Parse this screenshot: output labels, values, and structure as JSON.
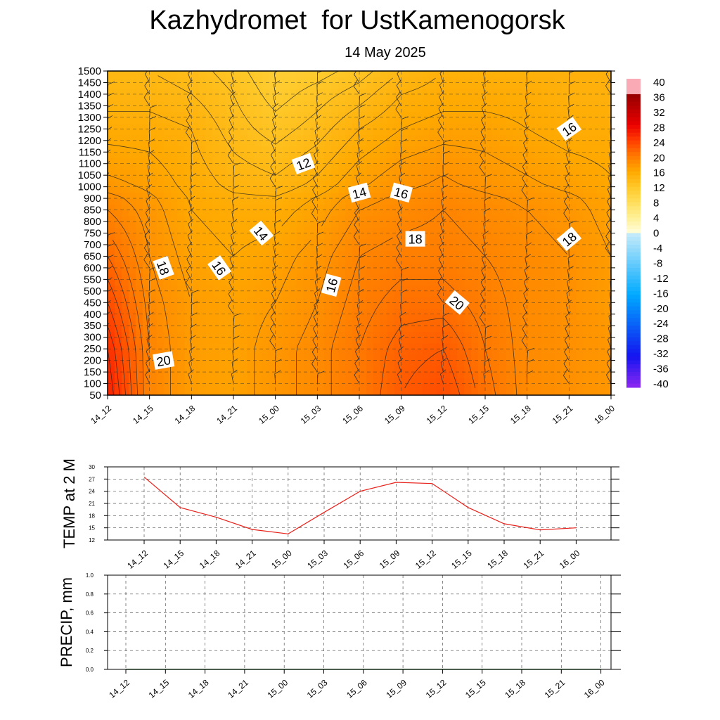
{
  "title": "Kazhydromet  for UstKamenogorsk",
  "subtitle": "14 May 2025",
  "time_labels": [
    "14_12",
    "14_15",
    "14_18",
    "14_21",
    "15_00",
    "15_03",
    "15_06",
    "15_09",
    "15_12",
    "15_15",
    "15_18",
    "15_21",
    "16_00"
  ],
  "colors": {
    "temp_line": "#e8211a",
    "grid": "#7f7f7f",
    "precip_line": "#2e7d32"
  },
  "chart_data": [
    {
      "type": "heatmap",
      "description_type": "time-height cross-section (temperature contours + wind barbs)",
      "x": [
        "14_12",
        "14_15",
        "14_18",
        "14_21",
        "15_00",
        "15_03",
        "15_06",
        "15_09",
        "15_12",
        "15_15",
        "15_18",
        "15_21",
        "16_00"
      ],
      "y_levels": [
        50,
        100,
        150,
        200,
        250,
        300,
        350,
        400,
        450,
        500,
        550,
        600,
        650,
        700,
        750,
        800,
        850,
        900,
        1000,
        1050,
        1100,
        1150,
        1200,
        1250,
        1300,
        1350,
        1400,
        1450,
        1500
      ],
      "temperature_grid": [
        [
          26,
          19,
          17,
          16.5,
          17.5,
          18.5,
          20,
          22,
          23,
          20.5,
          18.5,
          18,
          17.5
        ],
        [
          25,
          19,
          17,
          16.5,
          17.5,
          18.5,
          20,
          21.5,
          22,
          20,
          18.5,
          18,
          17.5
        ],
        [
          23,
          18.5,
          17,
          16.5,
          17,
          18,
          19.5,
          20.5,
          20.5,
          19.5,
          18.5,
          18,
          17
        ],
        [
          21,
          18,
          16.5,
          16,
          16.5,
          17.5,
          19,
          19.5,
          19.5,
          19,
          18.5,
          18,
          17
        ],
        [
          19,
          17.5,
          16,
          15.5,
          15.5,
          16.5,
          18,
          18.5,
          19,
          18.5,
          18,
          17.5,
          16.5
        ],
        [
          17,
          16.5,
          15.5,
          14.5,
          14,
          15,
          16.5,
          17.5,
          18,
          17.5,
          17,
          16.5,
          16
        ],
        [
          15.5,
          15.5,
          15,
          13.5,
          12.5,
          13.5,
          15,
          16,
          16.5,
          16.5,
          16,
          15.5,
          15.5
        ],
        [
          14.5,
          14.5,
          14,
          13,
          11.5,
          12.5,
          13.5,
          15,
          15.5,
          15.5,
          15.5,
          15,
          15
        ],
        [
          14,
          14,
          13.5,
          12.5,
          11,
          11.5,
          12.5,
          14,
          15,
          15,
          15,
          15,
          15
        ]
      ],
      "contour_labels": [
        {
          "text": "20",
          "time": "14_16",
          "level": 200
        },
        {
          "text": "18",
          "time": "14_16",
          "level": 600
        },
        {
          "text": "16",
          "time": "14_20",
          "level": 600
        },
        {
          "text": "14",
          "time": "14_23",
          "level": 750
        },
        {
          "text": "12",
          "time": "15_02",
          "level": 1100
        },
        {
          "text": "14",
          "time": "15_06",
          "level": 950
        },
        {
          "text": "16",
          "time": "15_09",
          "level": 950
        },
        {
          "text": "18",
          "time": "15_10",
          "level": 725
        },
        {
          "text": "16",
          "time": "15_04",
          "level": 525
        },
        {
          "text": "20",
          "time": "15_13",
          "level": 450
        },
        {
          "text": "16",
          "time": "15_21",
          "level": 1250
        },
        {
          "text": "18",
          "time": "15_21",
          "level": 725
        }
      ],
      "colorbar_ticks": [
        "40",
        "36",
        "32",
        "28",
        "24",
        "20",
        "16",
        "12",
        "8",
        "4",
        "0",
        "-4",
        "-8",
        "-12",
        "-16",
        "-20",
        "-24",
        "-28",
        "-32",
        "-36",
        "-40"
      ]
    },
    {
      "type": "line",
      "ylabel": "TEMP at 2 M",
      "x": [
        "14_12",
        "14_15",
        "14_18",
        "14_21",
        "15_00",
        "15_03",
        "15_06",
        "15_09",
        "15_12",
        "15_15",
        "15_18",
        "15_21",
        "16_00"
      ],
      "values": [
        27.5,
        20,
        17.6,
        14.6,
        13.5,
        18.8,
        24,
        26.2,
        25.9,
        20,
        16,
        14.5,
        15
      ],
      "yticks": [
        "30",
        "27",
        "24",
        "21",
        "18",
        "15",
        "12"
      ],
      "ylim": [
        12,
        30
      ]
    },
    {
      "type": "line",
      "ylabel": "PRECIP, mm",
      "x": [
        "14_12",
        "14_15",
        "14_18",
        "14_21",
        "15_00",
        "15_03",
        "15_06",
        "15_09",
        "15_12",
        "15_15",
        "15_18",
        "15_21",
        "16_00"
      ],
      "values": [
        0,
        0,
        0,
        0,
        0,
        0,
        0,
        0,
        0,
        0,
        0,
        0,
        0
      ],
      "yticks": [
        "1.0",
        "0.8",
        "0.6",
        "0.4",
        "0.2",
        "0.0"
      ],
      "ylim": [
        0,
        1
      ]
    }
  ]
}
